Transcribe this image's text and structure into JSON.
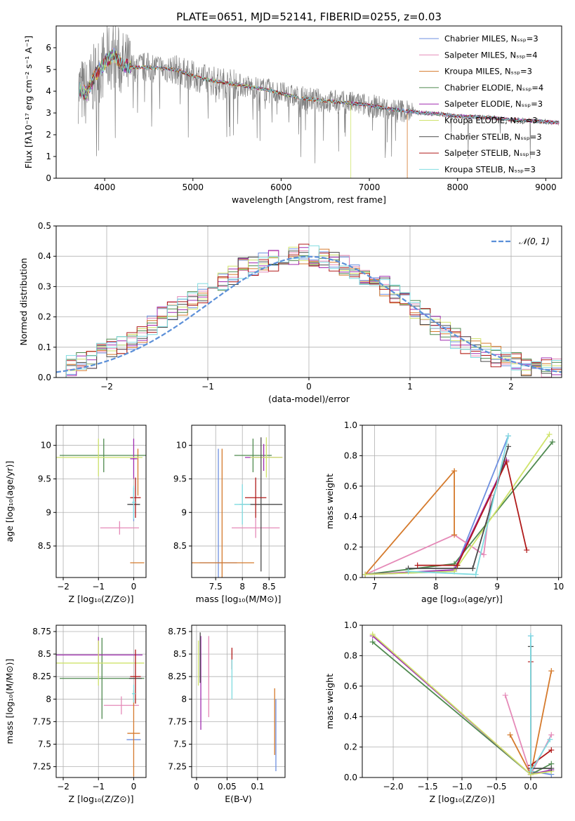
{
  "title": "PLATE=0651, MJD=52141, FIBERID=0255, z=0.03",
  "colors": {
    "Chabrier MILES": "#6d8fe0",
    "Salpeter MILES": "#e58ab8",
    "Kroupa MILES": "#d57a2c",
    "Chabrier ELODIE": "#4f8a4f",
    "Salpeter ELODIE": "#a02cb0",
    "Kroupa ELODIE": "#cfe36b",
    "Chabrier STELIB": "#4a4a4a",
    "Salpeter STELIB": "#b01a1a",
    "Kroupa STELIB": "#7fdbe0",
    "data": "#808080",
    "gaussian": "#5b8fd8"
  },
  "chart_data": [
    {
      "type": "line",
      "panel": "spectrum",
      "xlabel": "wavelength [Angstrom, rest frame]",
      "ylabel": "Flux [fλ10⁻¹⁷ erg cm⁻² s⁻¹ A⁻¹]",
      "xlim": [
        3450,
        9180
      ],
      "ylim": [
        0,
        7
      ],
      "xticks": [
        4000,
        5000,
        6000,
        7000,
        8000,
        9000
      ],
      "yticks": [
        0,
        1,
        2,
        3,
        4,
        5,
        6
      ],
      "legend_position": "top-right",
      "legend": [
        "Chabrier MILES, Nₛₛₚ=3",
        "Salpeter MILES, Nₛₛₚ=4",
        "Kroupa MILES, Nₛₛₚ=3",
        "Chabrier ELODIE, Nₛₛₚ=4",
        "Salpeter ELODIE, Nₛₛₚ=3",
        "Kroupa ELODIE, Nₛₛₚ=3",
        "Chabrier STELIB, Nₛₛₚ=3",
        "Salpeter STELIB, Nₛₛₚ=3",
        "Kroupa STELIB, Nₛₛₚ=3"
      ],
      "continuum": {
        "x": [
          3700,
          3800,
          3900,
          4000,
          4100,
          4200,
          4300,
          4500,
          4800,
          5000,
          5200,
          5500,
          5800,
          6000,
          6200,
          6500,
          6800,
          7000,
          7200,
          7400,
          7600,
          7800,
          8000,
          8300,
          8600,
          9000,
          9150
        ],
        "y": [
          4.1,
          3.9,
          4.8,
          5.3,
          5.7,
          5.2,
          5.1,
          5.1,
          5.0,
          4.7,
          4.5,
          4.3,
          4.1,
          3.9,
          3.7,
          3.55,
          3.45,
          3.35,
          3.2,
          3.1,
          3.0,
          2.95,
          2.85,
          2.8,
          2.7,
          2.6,
          2.55
        ]
      }
    },
    {
      "type": "line",
      "panel": "residual histogram",
      "xlabel": "(data-model)/error",
      "ylabel": "Normed distribution",
      "xlim": [
        -2.5,
        2.5
      ],
      "ylim": [
        0,
        0.5
      ],
      "xticks": [
        -2,
        -1,
        0,
        1,
        2
      ],
      "yticks": [
        0,
        0.1,
        0.2,
        0.3,
        0.4,
        0.5
      ],
      "legend_position": "top-right",
      "legend": [
        "𝒩(0, 1)"
      ],
      "bin_centers": [
        -2.35,
        -2.15,
        -1.95,
        -1.75,
        -1.55,
        -1.35,
        -1.15,
        -0.95,
        -0.75,
        -0.55,
        -0.35,
        -0.15,
        0.05,
        0.25,
        0.45,
        0.65,
        0.85,
        1.05,
        1.25,
        1.45,
        1.65,
        1.85,
        2.05,
        2.25,
        2.45
      ],
      "histogram": [
        0.03,
        0.05,
        0.08,
        0.11,
        0.14,
        0.2,
        0.24,
        0.28,
        0.32,
        0.36,
        0.38,
        0.39,
        0.41,
        0.39,
        0.37,
        0.34,
        0.3,
        0.25,
        0.2,
        0.15,
        0.11,
        0.08,
        0.06,
        0.04,
        0.03
      ],
      "gaussian": {
        "mean": 0,
        "sigma": 1
      }
    },
    {
      "type": "scatter",
      "panel": "Z vs age",
      "xlabel": "Z [log₁₀(Z/Z⊙)]",
      "ylabel": "age  [log₁₀(age/yr)]",
      "xlim": [
        -2.2,
        0.35
      ],
      "ylim": [
        8.03,
        10.3
      ],
      "xticks": [
        -2,
        -1,
        0
      ],
      "yticks": [
        8.5,
        9.0,
        9.5,
        10.0
      ],
      "points": [
        {
          "series": "Chabrier MILES",
          "x": 0.0,
          "y": 9.12,
          "xerr": 0.12,
          "yerr": 0.25
        },
        {
          "series": "Salpeter MILES",
          "x": -0.4,
          "y": 8.77,
          "xerr": 0.55,
          "yerr": 0.1
        },
        {
          "series": "Kroupa MILES",
          "x": 0.1,
          "y": 8.25,
          "xerr": 0.2,
          "yerr": 0.0
        },
        {
          "series": "Kroupa MILES",
          "x": 0.12,
          "y": 9.6,
          "xerr": 0.0,
          "yerr": 0.35
        },
        {
          "series": "Chabrier ELODIE",
          "x": -0.85,
          "y": 9.85,
          "xerr": 1.25,
          "yerr": 0.25
        },
        {
          "series": "Salpeter ELODIE",
          "x": 0.0,
          "y": 9.8,
          "xerr": 0.1,
          "yerr": 0.3
        },
        {
          "series": "Kroupa ELODIE",
          "x": -1.0,
          "y": 9.82,
          "xerr": 1.25,
          "yerr": 0.28
        },
        {
          "series": "Chabrier STELIB",
          "x": 0.0,
          "y": 9.12,
          "xerr": 0.18,
          "yerr": 0.0
        },
        {
          "series": "Salpeter STELIB",
          "x": 0.05,
          "y": 9.22,
          "xerr": 0.15,
          "yerr": 0.3
        },
        {
          "series": "Kroupa STELIB",
          "x": 0.0,
          "y": 9.15,
          "xerr": 0.05,
          "yerr": 0.25
        }
      ]
    },
    {
      "type": "scatter",
      "panel": "mass vs age",
      "xlabel": "mass [log₁₀(M/M⊙)]",
      "ylabel": "",
      "xlim": [
        7.05,
        8.8
      ],
      "ylim": [
        8.03,
        10.3
      ],
      "xticks": [
        7.5,
        8.0,
        8.5
      ],
      "yticks": [
        8.5,
        9.0,
        9.5,
        10.0
      ],
      "points": [
        {
          "series": "Chabrier MILES",
          "x": 7.55,
          "y": 8.25,
          "xerr": 0.35,
          "yerr": 1.7
        },
        {
          "series": "Salpeter MILES",
          "x": 8.25,
          "y": 8.77,
          "xerr": 0.45,
          "yerr": 0.15
        },
        {
          "series": "Kroupa MILES",
          "x": 7.62,
          "y": 8.25,
          "xerr": 0.6,
          "yerr": 1.7
        },
        {
          "series": "Chabrier ELODIE",
          "x": 8.2,
          "y": 9.85,
          "xerr": 0.35,
          "yerr": 0.25
        },
        {
          "series": "Salpeter ELODIE",
          "x": 8.4,
          "y": 9.82,
          "xerr": 0.35,
          "yerr": 0.2
        },
        {
          "series": "Kroupa ELODIE",
          "x": 8.45,
          "y": 9.82,
          "xerr": 0.3,
          "yerr": 0.3
        },
        {
          "series": "Chabrier STELIB",
          "x": 8.35,
          "y": 9.12,
          "xerr": 0.4,
          "yerr": 1.0
        },
        {
          "series": "Salpeter STELIB",
          "x": 8.25,
          "y": 9.22,
          "xerr": 0.2,
          "yerr": 0.3
        },
        {
          "series": "Kroupa STELIB",
          "x": 8.0,
          "y": 9.12,
          "xerr": 0.15,
          "yerr": 0.3
        }
      ]
    },
    {
      "type": "line",
      "panel": "age vs mass weight",
      "xlabel": "age  [log₁₀(age/yr)]",
      "ylabel": "mass weight",
      "xlim": [
        6.8,
        10.05
      ],
      "ylim": [
        0,
        1
      ],
      "xticks": [
        7,
        8,
        9,
        10
      ],
      "yticks": [
        0,
        0.2,
        0.4,
        0.6,
        0.8,
        1.0
      ],
      "series": [
        {
          "series": "Chabrier MILES",
          "x": [
            6.85,
            8.3,
            9.18
          ],
          "y": [
            0.02,
            0.04,
            0.93
          ]
        },
        {
          "series": "Salpeter MILES",
          "x": [
            6.85,
            8.3,
            8.78,
            8.9
          ],
          "y": [
            0.02,
            0.28,
            0.15,
            0.54
          ]
        },
        {
          "series": "Kroupa MILES",
          "x": [
            6.85,
            8.3,
            8.3
          ],
          "y": [
            0.02,
            0.7,
            0.28
          ]
        },
        {
          "series": "Chabrier ELODIE",
          "x": [
            6.85,
            8.3,
            9.9
          ],
          "y": [
            0.02,
            0.09,
            0.89
          ]
        },
        {
          "series": "Salpeter ELODIE",
          "x": [
            6.85,
            8.3,
            9.15
          ],
          "y": [
            0.02,
            0.05,
            0.77
          ]
        },
        {
          "series": "Kroupa ELODIE",
          "x": [
            6.85,
            8.3,
            9.85
          ],
          "y": [
            0.02,
            0.04,
            0.94
          ]
        },
        {
          "series": "Chabrier STELIB",
          "x": [
            7.55,
            8.6,
            9.18
          ],
          "y": [
            0.06,
            0.06,
            0.86
          ]
        },
        {
          "series": "Salpeter STELIB",
          "x": [
            7.7,
            8.35,
            9.15,
            9.48
          ],
          "y": [
            0.08,
            0.08,
            0.76,
            0.18
          ]
        },
        {
          "series": "Kroupa STELIB",
          "x": [
            7.55,
            8.65,
            9.18
          ],
          "y": [
            0.04,
            0.02,
            0.93
          ]
        }
      ]
    },
    {
      "type": "scatter",
      "panel": "Z vs mass",
      "xlabel": "Z [log₁₀(Z/Z⊙)]",
      "ylabel": "mass [log₁₀(M/M⊙)]",
      "xlim": [
        -2.2,
        0.35
      ],
      "ylim": [
        7.13,
        8.82
      ],
      "xticks": [
        -2,
        -1,
        0
      ],
      "yticks": [
        7.25,
        7.5,
        7.75,
        8.0,
        8.25,
        8.5,
        8.75
      ],
      "points": [
        {
          "series": "Chabrier MILES",
          "x": 0.0,
          "y": 7.55,
          "xerr": 0.2,
          "yerr": 0.0
        },
        {
          "series": "Salpeter MILES",
          "x": -0.35,
          "y": 7.93,
          "xerr": 0.5,
          "yerr": 0.1
        },
        {
          "series": "Kroupa MILES",
          "x": 0.0,
          "y": 7.62,
          "xerr": 0.18,
          "yerr": 0.48
        },
        {
          "series": "Chabrier ELODIE",
          "x": -0.9,
          "y": 8.23,
          "xerr": 1.2,
          "yerr": 0.45
        },
        {
          "series": "Salpeter ELODIE",
          "x": -1.0,
          "y": 8.49,
          "xerr": 1.25,
          "yerr": 0.2
        },
        {
          "series": "Kroupa ELODIE",
          "x": -1.0,
          "y": 8.4,
          "xerr": 1.3,
          "yerr": 0.25
        },
        {
          "series": "Chabrier STELIB",
          "x": 0.05,
          "y": 8.23,
          "xerr": 0.18,
          "yerr": 0.0
        },
        {
          "series": "Salpeter STELIB",
          "x": 0.05,
          "y": 8.25,
          "xerr": 0.15,
          "yerr": 0.3
        },
        {
          "series": "Kroupa STELIB",
          "x": 0.0,
          "y": 8.06,
          "xerr": 0.05,
          "yerr": 0.1
        }
      ]
    },
    {
      "type": "scatter",
      "panel": "E(B-V) vs mass",
      "xlabel": "E(B-V)",
      "ylabel": "",
      "xlim": [
        -0.008,
        0.145
      ],
      "ylim": [
        7.13,
        8.82
      ],
      "xticks": [
        0.0,
        0.05,
        0.1
      ],
      "yticks": [
        7.25,
        7.5,
        7.75,
        8.0,
        8.25,
        8.5,
        8.75
      ],
      "points": [
        {
          "series": "Chabrier MILES",
          "x": 0.13,
          "y": 7.6,
          "xerr": 0.0,
          "yerr": 0.4
        },
        {
          "series": "Salpeter MILES",
          "x": 0.02,
          "y": 8.25,
          "xerr": 0.0,
          "yerr": 0.45
        },
        {
          "series": "Kroupa MILES",
          "x": 0.128,
          "y": 7.75,
          "xerr": 0.0,
          "yerr": 0.37
        },
        {
          "series": "Chabrier ELODIE",
          "x": 0.006,
          "y": 8.46,
          "xerr": 0.0,
          "yerr": 0.22
        },
        {
          "series": "Salpeter ELODIE",
          "x": 0.007,
          "y": 8.18,
          "xerr": 0.0,
          "yerr": 0.52
        },
        {
          "series": "Kroupa ELODIE",
          "x": 0.003,
          "y": 8.4,
          "xerr": 0.0,
          "yerr": 0.25
        },
        {
          "series": "Chabrier STELIB",
          "x": 0.006,
          "y": 8.46,
          "xerr": 0.0,
          "yerr": 0.28
        },
        {
          "series": "Salpeter STELIB",
          "x": 0.058,
          "y": 8.45,
          "xerr": 0.0,
          "yerr": 0.12
        },
        {
          "series": "Kroupa STELIB",
          "x": 0.058,
          "y": 8.22,
          "xerr": 0.0,
          "yerr": 0.22
        }
      ]
    },
    {
      "type": "line",
      "panel": "Z vs mass weight",
      "xlabel": "Z [log₁₀(Z/Z⊙)]",
      "ylabel": "mass weight",
      "xlim": [
        -2.45,
        0.45
      ],
      "ylim": [
        0,
        1
      ],
      "xticks": [
        -2.0,
        -1.5,
        -1.0,
        -0.5,
        0.0
      ],
      "yticks": [
        0,
        0.2,
        0.4,
        0.6,
        0.8,
        1.0
      ],
      "series": [
        {
          "series": "Chabrier MILES",
          "x": [
            0.0,
            0.0,
            0.3
          ],
          "y": [
            0.93,
            0.04,
            0.02
          ]
        },
        {
          "series": "Salpeter MILES",
          "x": [
            -0.37,
            0.0,
            0.3
          ],
          "y": [
            0.54,
            0.02,
            0.28
          ]
        },
        {
          "series": "Kroupa MILES",
          "x": [
            -0.3,
            0.0,
            0.3
          ],
          "y": [
            0.28,
            0.02,
            0.7
          ]
        },
        {
          "series": "Chabrier ELODIE",
          "x": [
            -2.3,
            0.0,
            0.3
          ],
          "y": [
            0.89,
            0.02,
            0.09
          ]
        },
        {
          "series": "Salpeter ELODIE",
          "x": [
            -2.3,
            0.0,
            0.3
          ],
          "y": [
            0.93,
            0.02,
            0.05
          ]
        },
        {
          "series": "Kroupa ELODIE",
          "x": [
            -2.3,
            0.0,
            0.3
          ],
          "y": [
            0.94,
            0.02,
            0.04
          ]
        },
        {
          "series": "Chabrier STELIB",
          "x": [
            0.0,
            0.0,
            0.3
          ],
          "y": [
            0.86,
            0.06,
            0.06
          ]
        },
        {
          "series": "Salpeter STELIB",
          "x": [
            0.0,
            0.0,
            0.3
          ],
          "y": [
            0.76,
            0.08,
            0.18
          ]
        },
        {
          "series": "Kroupa STELIB",
          "x": [
            0.0,
            0.0,
            0.28
          ],
          "y": [
            0.93,
            0.04,
            0.25
          ]
        }
      ]
    }
  ]
}
